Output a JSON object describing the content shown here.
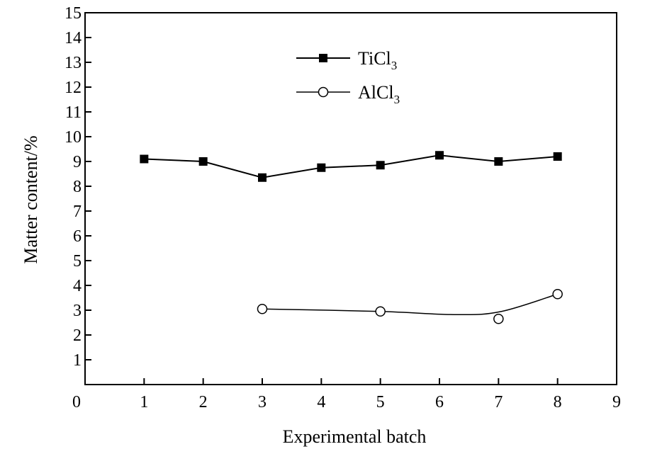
{
  "chart_data": {
    "type": "line",
    "title": "",
    "xlabel": "Experimental batch",
    "ylabel": "Matter content/%",
    "xlim": [
      0,
      9
    ],
    "ylim": [
      0,
      15
    ],
    "x_ticks": [
      "0",
      "1",
      "2",
      "3",
      "4",
      "5",
      "6",
      "7",
      "8",
      "9"
    ],
    "y_ticks": [
      "1",
      "2",
      "3",
      "4",
      "5",
      "6",
      "7",
      "8",
      "9",
      "10",
      "11",
      "12",
      "13",
      "14",
      "15"
    ],
    "grid": false,
    "legend_position": "top-center",
    "series": [
      {
        "name": "TiCl",
        "name_subscript": "3",
        "marker": "filled-square",
        "color": "#000000",
        "x": [
          1,
          2,
          3,
          4,
          5,
          6,
          7,
          8
        ],
        "y": [
          9.1,
          9.0,
          8.35,
          8.75,
          8.85,
          9.25,
          9.0,
          9.2
        ]
      },
      {
        "name": "AlCl",
        "name_subscript": "3",
        "marker": "open-circle",
        "color": "#000000",
        "x": [
          3,
          5,
          7,
          8
        ],
        "y": [
          3.05,
          2.95,
          2.65,
          3.65
        ]
      }
    ]
  }
}
